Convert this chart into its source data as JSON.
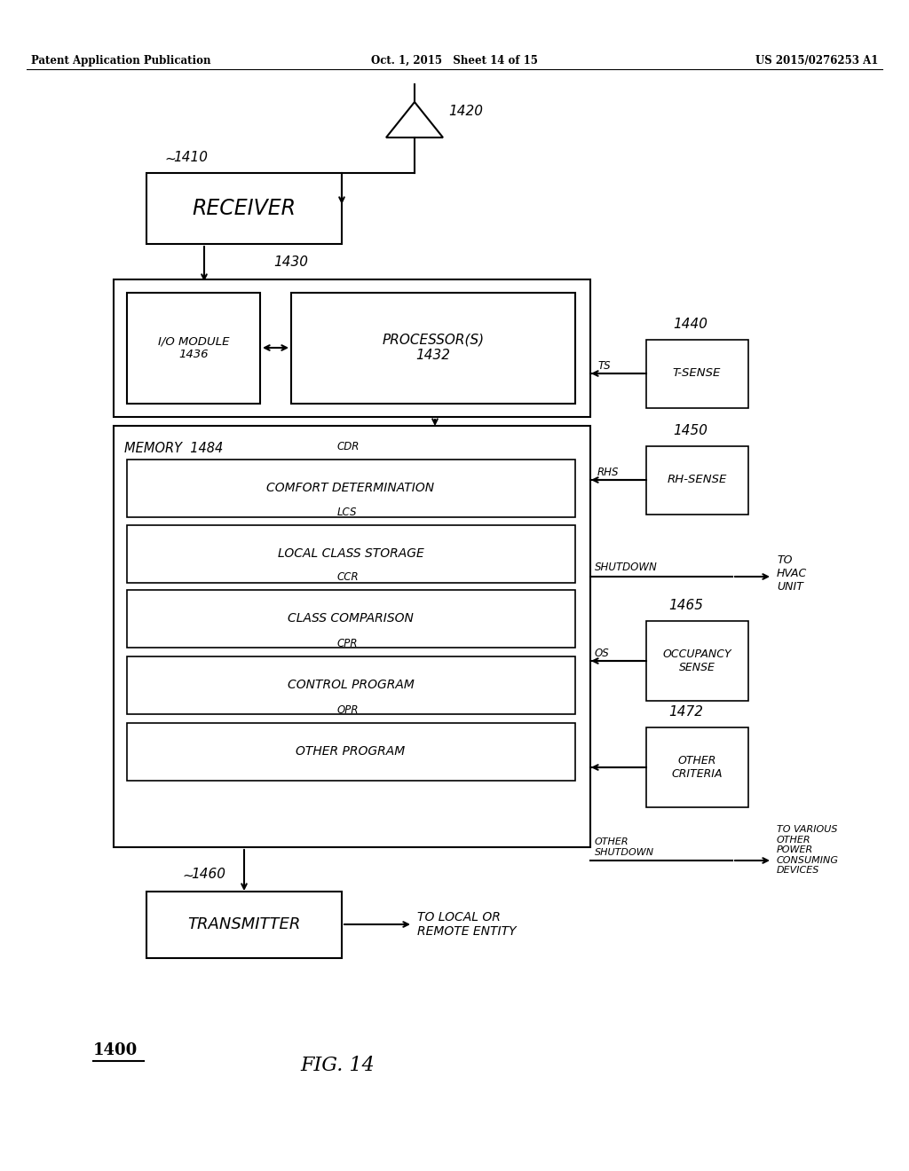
{
  "bg_color": "#ffffff",
  "header_left": "Patent Application Publication",
  "header_mid": "Oct. 1, 2015   Sheet 14 of 15",
  "header_right": "US 2015/0276253 A1",
  "fig_label": "1400",
  "fig_name": "FIG. 14",
  "antenna_label": "1420",
  "receiver_label": "1410",
  "receiver_text": "RECEIVER",
  "module_label": "1430",
  "io_text": "I/O MODULE\n1436",
  "proc_text": "PROCESSOR(S)\n1432",
  "memory_text": "MEMORY  1484",
  "cdr_text": "CDR",
  "comfort_text": "COMFORT DETERMINATION",
  "lcs_text": "LCS",
  "local_class_text": "LOCAL CLASS STORAGE",
  "ccr_text": "CCR",
  "class_comp_text": "CLASS COMPARISON",
  "cpr_text": "CPR",
  "control_prog_text": "CONTROL PROGRAM",
  "opr_text": "OPR",
  "other_prog_text": "OTHER PROGRAM",
  "transmitter_label": "1460",
  "transmitter_text": "TRANSMITTER",
  "transmitter_dest": "TO LOCAL OR\nREMOTE ENTITY",
  "tsense_label": "1440",
  "tsense_text": "T-SENSE",
  "tsense_sig": "TS",
  "rhsense_label": "1450",
  "rhsense_text": "RH-SENSE",
  "rhsense_sig": "RHS",
  "shutdown_text": "SHUTDOWN",
  "hvac_text": "TO\nHVAC\nUNIT",
  "occupancy_label": "1465",
  "occupancy_text": "OCCUPANCY\nSENSE",
  "occupancy_sig": "OS",
  "other_crit_label": "1472",
  "other_crit_text": "OTHER\nCRITERIA",
  "other_shutdown_text": "OTHER\nSHUTDOWN",
  "other_dest_text": "TO VARIOUS\nOTHER\nPOWER\nCONSUMING\nDEVICES",
  "line_color": "#000000",
  "text_color": "#000000",
  "box_face": "#ffffff",
  "box_edge": "#000000"
}
